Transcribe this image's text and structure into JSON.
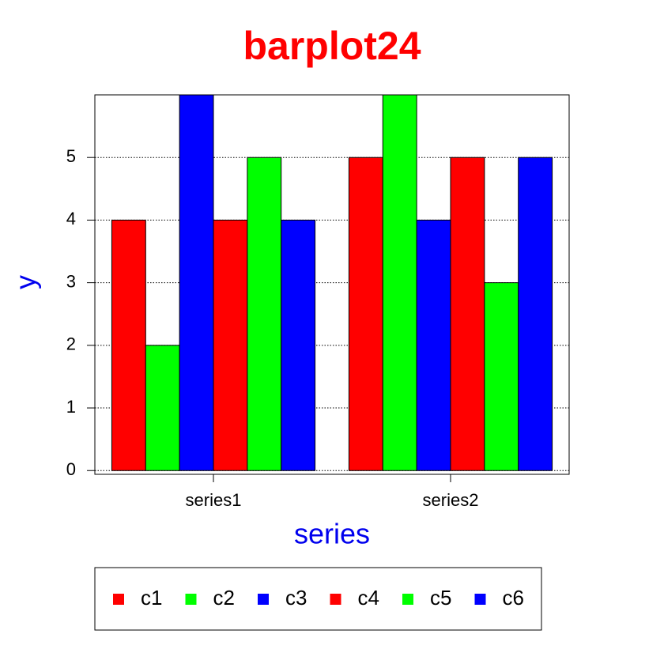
{
  "chart_data": {
    "type": "bar",
    "title": "barplot24",
    "x_label": "series",
    "y_label": "y",
    "categories": [
      "series1",
      "series2"
    ],
    "series": [
      {
        "name": "c1",
        "color": "#ff0000",
        "values": [
          4,
          5
        ]
      },
      {
        "name": "c2",
        "color": "#00ff00",
        "values": [
          2,
          6
        ]
      },
      {
        "name": "c3",
        "color": "#0000ff",
        "values": [
          6,
          4
        ]
      },
      {
        "name": "c4",
        "color": "#ff0000",
        "values": [
          4,
          5
        ]
      },
      {
        "name": "c5",
        "color": "#00ff00",
        "values": [
          5,
          3
        ]
      },
      {
        "name": "c6",
        "color": "#0000ff",
        "values": [
          4,
          5
        ]
      }
    ],
    "ylim": [
      -0.06,
      6
    ],
    "yticks": [
      0,
      1,
      2,
      3,
      4,
      5
    ],
    "grid": true,
    "legend": "bottom"
  }
}
